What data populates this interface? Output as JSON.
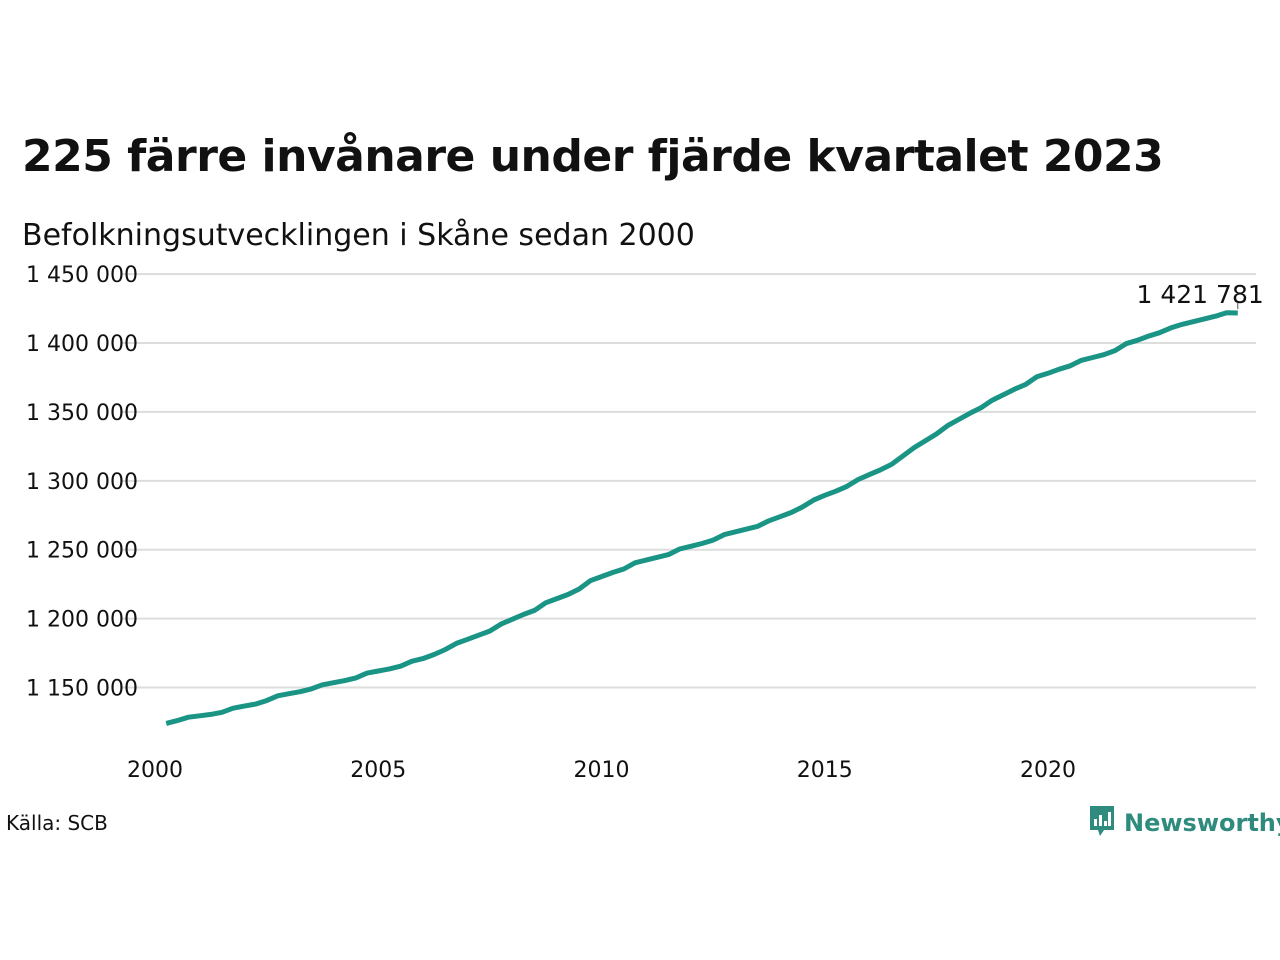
{
  "title": "225 färre invånare under fjärde kvartalet 2023",
  "subtitle": "Befolkningsutvecklingen i Skåne sedan 2000",
  "source": "Källa: SCB",
  "brand": {
    "name": "Newsworthy",
    "icon": "newsworthy-logo-icon",
    "color": "#2e8b7d"
  },
  "chart_data": {
    "type": "line",
    "series_color": "#1a9484",
    "grid": true,
    "y_ticks": [
      {
        "value": 1150000,
        "label": "1 150 000"
      },
      {
        "value": 1200000,
        "label": "1 200 000"
      },
      {
        "value": 1250000,
        "label": "1 250 000"
      },
      {
        "value": 1300000,
        "label": "1 300 000"
      },
      {
        "value": 1350000,
        "label": "1 350 000"
      },
      {
        "value": 1400000,
        "label": "1 400 000"
      },
      {
        "value": 1450000,
        "label": "1 450 000"
      }
    ],
    "x_ticks": [
      {
        "value": 2000,
        "label": "2000"
      },
      {
        "value": 2005,
        "label": "2005"
      },
      {
        "value": 2010,
        "label": "2010"
      },
      {
        "value": 2015,
        "label": "2015"
      },
      {
        "value": 2020,
        "label": "2020"
      }
    ],
    "ylim": [
      1117000,
      1453000
    ],
    "xlim": [
      2000,
      2024.5
    ],
    "end_label": "1 421 781",
    "x_start": 2000.25,
    "x_step": 0.25,
    "values": [
      1124000,
      1126000,
      1128500,
      1129500,
      1130500,
      1132000,
      1135000,
      1136500,
      1138000,
      1140500,
      1144000,
      1145500,
      1147000,
      1149000,
      1152000,
      1153500,
      1155000,
      1157000,
      1160500,
      1162000,
      1163500,
      1165500,
      1169000,
      1171000,
      1174000,
      1177500,
      1182000,
      1185000,
      1188000,
      1191000,
      1196000,
      1199500,
      1203000,
      1206000,
      1211500,
      1214500,
      1217500,
      1221500,
      1227500,
      1230500,
      1233500,
      1236000,
      1240500,
      1242500,
      1244500,
      1246500,
      1250500,
      1252500,
      1254500,
      1257000,
      1261000,
      1263000,
      1265000,
      1267000,
      1271000,
      1274000,
      1277000,
      1281000,
      1286000,
      1289500,
      1292500,
      1296000,
      1301000,
      1304500,
      1308000,
      1312000,
      1318000,
      1324000,
      1329000,
      1334000,
      1340000,
      1344500,
      1349000,
      1353000,
      1358500,
      1362500,
      1366500,
      1370000,
      1375500,
      1378000,
      1381000,
      1383500,
      1387500,
      1389500,
      1391500,
      1394500,
      1399500,
      1402000,
      1405000,
      1407500,
      1411000,
      1413500,
      1415500,
      1417500,
      1419500,
      1422006,
      1421781
    ]
  }
}
